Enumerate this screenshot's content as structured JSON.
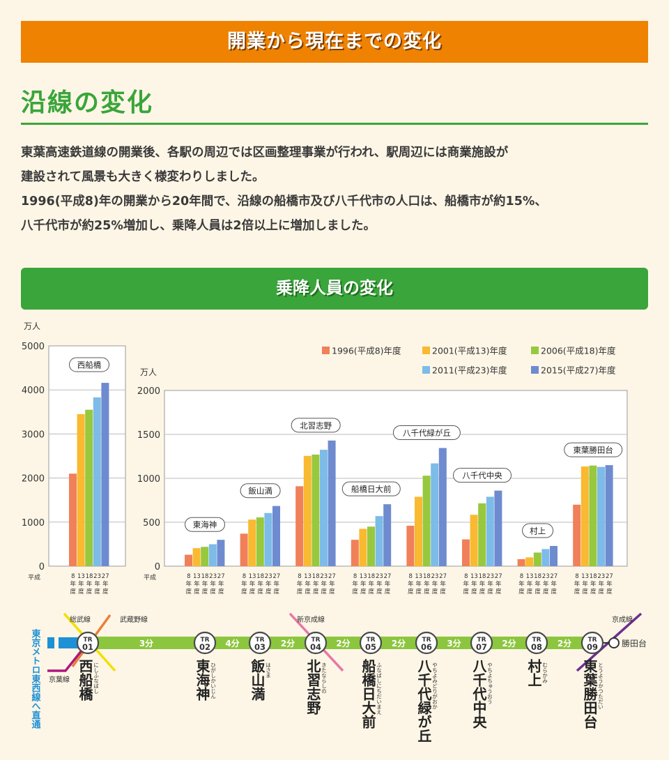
{
  "header": {
    "title": "開業から現在までの変化"
  },
  "section": {
    "title": "沿線の変化",
    "paragraphs": [
      "東葉高速鉄道線の開業後、各駅の周辺では区画整理事業が行われ、駅周辺には商業施設が",
      "建設されて風景も大きく様変わりしました。",
      "1996(平成8)年の開業から20年間で、沿線の船橋市及び八千代市の人口は、船橋市が約15%、",
      "八千代市が約25%増加し、乗降人員は2倍以上に増加しました。"
    ]
  },
  "chart_banner": {
    "title": "乗降人員の変化"
  },
  "chart_data": [
    {
      "type": "bar",
      "ylabel": "万人",
      "ylim": [
        0,
        5000
      ],
      "yticks": [
        "0",
        "1000",
        "2000",
        "3000",
        "4000",
        "5000"
      ],
      "era_label": "平成",
      "year_ticks": [
        "8",
        "13",
        "18",
        "23",
        "27"
      ],
      "year_suffix": [
        "年",
        "度"
      ],
      "categories": [
        "西船橋"
      ],
      "series": [
        {
          "name": "1996(平成8)年度",
          "values": [
            2100
          ]
        },
        {
          "name": "2001(平成13)年度",
          "values": [
            3450
          ]
        },
        {
          "name": "2006(平成18)年度",
          "values": [
            3550
          ]
        },
        {
          "name": "2011(平成23)年度",
          "values": [
            3830
          ]
        },
        {
          "name": "2015(平成27)年度",
          "values": [
            4160
          ]
        }
      ]
    },
    {
      "type": "bar",
      "ylabel": "万人",
      "ylim": [
        0,
        2000
      ],
      "yticks": [
        "0",
        "500",
        "1000",
        "1500",
        "2000"
      ],
      "era_label": "平成",
      "year_ticks": [
        "8",
        "13",
        "18",
        "23",
        "27"
      ],
      "year_suffix": [
        "年",
        "度"
      ],
      "legend_position": "top-right",
      "categories": [
        "東海神",
        "飯山満",
        "北習志野",
        "船橋日大前",
        "八千代緑が丘",
        "八千代中央",
        "村上",
        "東葉勝田台"
      ],
      "series": [
        {
          "name": "1996(平成8)年度",
          "values": [
            130,
            370,
            910,
            300,
            460,
            305,
            80,
            700
          ]
        },
        {
          "name": "2001(平成13)年度",
          "values": [
            205,
            530,
            1255,
            425,
            790,
            585,
            100,
            1135
          ]
        },
        {
          "name": "2006(平成18)年度",
          "values": [
            220,
            555,
            1270,
            450,
            1030,
            715,
            155,
            1145
          ]
        },
        {
          "name": "2011(平成23)年度",
          "values": [
            250,
            605,
            1325,
            570,
            1170,
            790,
            195,
            1130
          ]
        },
        {
          "name": "2015(平成27)年度",
          "values": [
            300,
            685,
            1430,
            705,
            1345,
            860,
            230,
            1150
          ]
        }
      ]
    }
  ],
  "colors": {
    "series": [
      "#f0805a",
      "#f9b931",
      "#98c83e",
      "#7dbbe8",
      "#6e8bd0"
    ],
    "line_green": "#8cc63f",
    "banner_orange": "#ef8200",
    "banner_green": "#3aa53a"
  },
  "route_map": {
    "through_service": "東京メトロ東西線へ直通",
    "stations": [
      {
        "code": "TR",
        "num": "01",
        "name": "西船橋",
        "reading": "にしふなばし"
      },
      {
        "code": "TR",
        "num": "02",
        "name": "東海神",
        "reading": "ひがしかいじん"
      },
      {
        "code": "TR",
        "num": "03",
        "name": "飯山満",
        "reading": "はさま"
      },
      {
        "code": "TR",
        "num": "04",
        "name": "北習志野",
        "reading": "きたならしの"
      },
      {
        "code": "TR",
        "num": "05",
        "name": "船橋日大前",
        "reading": "ふなばしにちだいまえ"
      },
      {
        "code": "TR",
        "num": "06",
        "name": "八千代緑が丘",
        "reading": "やちよみどりがおか"
      },
      {
        "code": "TR",
        "num": "07",
        "name": "八千代中央",
        "reading": "やちよちゅうおう"
      },
      {
        "code": "TR",
        "num": "08",
        "name": "村上",
        "reading": "むらかみ"
      },
      {
        "code": "TR",
        "num": "09",
        "name": "東葉勝田台",
        "reading": "とうようかつただい"
      }
    ],
    "travel_times": [
      "3分",
      "4分",
      "2分",
      "2分",
      "2分",
      "3分",
      "2分",
      "2分"
    ],
    "terminal": "勝田台",
    "connecting_lines": [
      "総武線",
      "武蔵野線",
      "京葉線",
      "新京成線",
      "京成線"
    ]
  }
}
